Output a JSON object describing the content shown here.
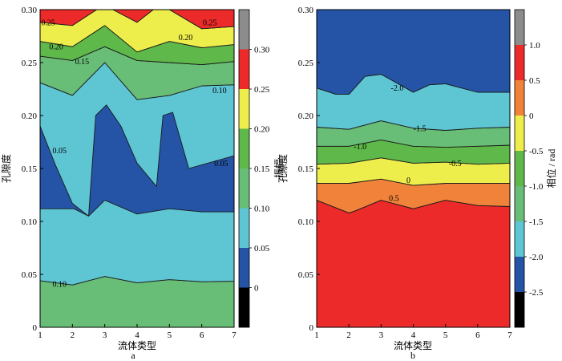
{
  "palette": {
    "black": "#000000",
    "blue": "#2554a6",
    "cyan": "#5ec5d3",
    "green_light": "#68bd77",
    "green": "#5fb84a",
    "yellow": "#eded4c",
    "orange": "#f0823a",
    "red": "#ec2a2a",
    "gray": "#8c8c8c"
  },
  "chart_data": [
    {
      "type": "contour",
      "panel": "a",
      "xlabel": "流体类型",
      "ylabel": "孔隙度",
      "colorbar_label": "振幅",
      "xlim": [
        1,
        7
      ],
      "ylim": [
        0,
        0.3
      ],
      "xticks": [
        "1",
        "2",
        "3",
        "4",
        "5",
        "6",
        "7"
      ],
      "yticks": [
        "0",
        "0.05",
        "0.10",
        "0.15",
        "0.20",
        "0.25",
        "0.30"
      ],
      "colorbar": {
        "range": [
          -0.05,
          0.35
        ],
        "ticks": [
          "0",
          "0.05",
          "0.10",
          "0.15",
          "0.20",
          "0.25",
          "0.30"
        ],
        "bands": [
          {
            "from": -0.05,
            "to": 0.0,
            "color": "#000000"
          },
          {
            "from": 0.0,
            "to": 0.05,
            "color": "#2554a6"
          },
          {
            "from": 0.05,
            "to": 0.1,
            "color": "#5ec5d3"
          },
          {
            "from": 0.1,
            "to": 0.15,
            "color": "#68bd77"
          },
          {
            "from": 0.15,
            "to": 0.2,
            "color": "#5fb84a"
          },
          {
            "from": 0.2,
            "to": 0.25,
            "color": "#eded4c"
          },
          {
            "from": 0.25,
            "to": 0.3,
            "color": "#ec2a2a"
          },
          {
            "from": 0.3,
            "to": 0.35,
            "color": "#8c8c8c"
          }
        ]
      },
      "regions": [
        {
          "level": "0.10-0.15",
          "color": "#68bd77",
          "polygon": [
            [
              1,
              0
            ],
            [
              7,
              0
            ],
            [
              7,
              0.0435
            ],
            [
              6,
              0.043
            ],
            [
              5,
              0.045
            ],
            [
              4,
              0.042
            ],
            [
              3,
              0.048
            ],
            [
              2,
              0.04
            ],
            [
              1,
              0.044
            ]
          ]
        },
        {
          "level": "0.05-0.10",
          "color": "#5ec5d3",
          "polygon": [
            [
              1,
              0.044
            ],
            [
              2,
              0.04
            ],
            [
              3,
              0.048
            ],
            [
              4,
              0.042
            ],
            [
              5,
              0.045
            ],
            [
              6,
              0.043
            ],
            [
              7,
              0.0435
            ],
            [
              7,
              0.229
            ],
            [
              6,
              0.228
            ],
            [
              5,
              0.219
            ],
            [
              4,
              0.215
            ],
            [
              3,
              0.25
            ],
            [
              2,
              0.219
            ],
            [
              1,
              0.231
            ]
          ]
        },
        {
          "level": "0.00-0.05",
          "color": "#2554a6",
          "polygon": [
            [
              1,
              0.112
            ],
            [
              1,
              0.19
            ],
            [
              1.45,
              0.155
            ],
            [
              2,
              0.117
            ],
            [
              2.5,
              0.105
            ],
            [
              2.05,
              0.112
            ]
          ]
        },
        {
          "level": "0.00-0.05",
          "color": "#2554a6",
          "polygon": [
            [
              2.72,
              0.2
            ],
            [
              3.05,
              0.21
            ],
            [
              3.5,
              0.19
            ],
            [
              4,
              0.155
            ],
            [
              4.6,
              0.133
            ],
            [
              4.8,
              0.2
            ],
            [
              5.1,
              0.203
            ],
            [
              5.6,
              0.15
            ],
            [
              7,
              0.162
            ],
            [
              7,
              0.109
            ],
            [
              6,
              0.109
            ],
            [
              5,
              0.112
            ],
            [
              4,
              0.107
            ],
            [
              3,
              0.12
            ],
            [
              2.5,
              0.105
            ]
          ]
        },
        {
          "level": "0.10-0.15",
          "color": "#68bd77",
          "polygon": [
            [
              1,
              0.231
            ],
            [
              2,
              0.219
            ],
            [
              3,
              0.25
            ],
            [
              4,
              0.215
            ],
            [
              5,
              0.219
            ],
            [
              6,
              0.228
            ],
            [
              7,
              0.229
            ],
            [
              7,
              0.251
            ],
            [
              6,
              0.248
            ],
            [
              5,
              0.25
            ],
            [
              4,
              0.252
            ],
            [
              3,
              0.265
            ],
            [
              2,
              0.252
            ],
            [
              1,
              0.256
            ]
          ]
        },
        {
          "level": "0.15-0.20",
          "color": "#5fb84a",
          "polygon": [
            [
              1,
              0.256
            ],
            [
              2,
              0.252
            ],
            [
              3,
              0.265
            ],
            [
              4,
              0.252
            ],
            [
              5,
              0.25
            ],
            [
              6,
              0.248
            ],
            [
              7,
              0.251
            ],
            [
              7,
              0.267
            ],
            [
              6,
              0.264
            ],
            [
              5,
              0.27
            ],
            [
              4,
              0.26
            ],
            [
              3,
              0.285
            ],
            [
              2,
              0.265
            ],
            [
              1,
              0.27
            ]
          ]
        },
        {
          "level": "0.20-0.25",
          "color": "#eded4c",
          "polygon": [
            [
              1,
              0.27
            ],
            [
              2,
              0.265
            ],
            [
              3,
              0.285
            ],
            [
              4,
              0.26
            ],
            [
              5,
              0.27
            ],
            [
              6,
              0.264
            ],
            [
              7,
              0.267
            ],
            [
              7,
              0.284
            ],
            [
              6,
              0.282
            ],
            [
              5,
              0.3
            ],
            [
              4.5,
              0.3
            ],
            [
              4,
              0.288
            ],
            [
              3.25,
              0.3
            ],
            [
              2.75,
              0.3
            ],
            [
              2,
              0.285
            ],
            [
              1,
              0.288
            ]
          ]
        },
        {
          "level": "0.25-0.30",
          "color": "#ec2a2a",
          "polygon": [
            [
              1,
              0.288
            ],
            [
              2,
              0.285
            ],
            [
              2.75,
              0.3
            ],
            [
              1,
              0.3
            ]
          ]
        },
        {
          "level": "0.25-0.30",
          "color": "#ec2a2a",
          "polygon": [
            [
              3.25,
              0.3
            ],
            [
              4,
              0.288
            ],
            [
              4.5,
              0.3
            ]
          ]
        },
        {
          "level": "0.25-0.30",
          "color": "#ec2a2a",
          "polygon": [
            [
              5,
              0.3
            ],
            [
              6,
              0.282
            ],
            [
              7,
              0.284
            ],
            [
              7,
              0.3
            ]
          ]
        }
      ],
      "contour_labels": [
        {
          "text": "0.25",
          "x": 1.25,
          "y": 0.288
        },
        {
          "text": "0.25",
          "x": 6.25,
          "y": 0.288
        },
        {
          "text": "0.20",
          "x": 1.5,
          "y": 0.265
        },
        {
          "text": "0.20",
          "x": 5.5,
          "y": 0.274
        },
        {
          "text": "0.15",
          "x": 2.3,
          "y": 0.251
        },
        {
          "text": "0.10",
          "x": 6.55,
          "y": 0.224
        },
        {
          "text": "0.05",
          "x": 1.6,
          "y": 0.167
        },
        {
          "text": "0.05",
          "x": 6.6,
          "y": 0.155
        },
        {
          "text": "0.10",
          "x": 1.6,
          "y": 0.041
        }
      ]
    },
    {
      "type": "contour",
      "panel": "b",
      "xlabel": "流体类型",
      "ylabel": "孔隙度",
      "colorbar_label": "相位 / rad",
      "xlim": [
        1,
        7
      ],
      "ylim": [
        0,
        0.3
      ],
      "xticks": [
        "1",
        "2",
        "3",
        "4",
        "5",
        "6",
        "7"
      ],
      "yticks": [
        "0",
        "0.05",
        "0.10",
        "0.15",
        "0.20",
        "0.25",
        "0.30"
      ],
      "colorbar": {
        "range": [
          -3.0,
          1.5
        ],
        "ticks": [
          "-2.5",
          "-2.0",
          "-1.5",
          "-1.0",
          "-0.5",
          "0",
          "0.5",
          "1.0"
        ],
        "bands": [
          {
            "from": -3.0,
            "to": -2.5,
            "color": "#000000"
          },
          {
            "from": -2.5,
            "to": -2.0,
            "color": "#2554a6"
          },
          {
            "from": -2.0,
            "to": -1.5,
            "color": "#5ec5d3"
          },
          {
            "from": -1.5,
            "to": -1.0,
            "color": "#68bd77"
          },
          {
            "from": -1.0,
            "to": -0.5,
            "color": "#5fb84a"
          },
          {
            "from": -0.5,
            "to": 0.0,
            "color": "#eded4c"
          },
          {
            "from": 0.0,
            "to": 0.5,
            "color": "#f0823a"
          },
          {
            "from": 0.5,
            "to": 1.0,
            "color": "#ec2a2a"
          },
          {
            "from": 1.0,
            "to": 1.5,
            "color": "#8c8c8c"
          }
        ]
      },
      "regions": [
        {
          "level": "0.5-1.0",
          "color": "#ec2a2a",
          "polygon": [
            [
              1,
              0
            ],
            [
              7,
              0
            ],
            [
              7,
              0.114
            ],
            [
              6,
              0.115
            ],
            [
              5,
              0.12
            ],
            [
              4,
              0.112
            ],
            [
              3,
              0.12
            ],
            [
              2.2,
              0.11
            ],
            [
              2,
              0.108
            ],
            [
              1,
              0.12
            ]
          ]
        },
        {
          "level": "0-0.5",
          "color": "#f0823a",
          "polygon": [
            [
              1,
              0.12
            ],
            [
              2,
              0.108
            ],
            [
              2.2,
              0.11
            ],
            [
              3,
              0.12
            ],
            [
              4,
              0.112
            ],
            [
              5,
              0.12
            ],
            [
              6,
              0.115
            ],
            [
              7,
              0.114
            ],
            [
              7,
              0.136
            ],
            [
              6,
              0.136
            ],
            [
              5,
              0.136
            ],
            [
              4,
              0.134
            ],
            [
              3,
              0.14
            ],
            [
              2,
              0.136
            ],
            [
              1,
              0.136
            ]
          ]
        },
        {
          "level": "-0.5-0",
          "color": "#eded4c",
          "polygon": [
            [
              1,
              0.136
            ],
            [
              2,
              0.136
            ],
            [
              3,
              0.14
            ],
            [
              4,
              0.134
            ],
            [
              5,
              0.136
            ],
            [
              6,
              0.136
            ],
            [
              7,
              0.136
            ],
            [
              7,
              0.155
            ],
            [
              6,
              0.154
            ],
            [
              5,
              0.156
            ],
            [
              4,
              0.155
            ],
            [
              3,
              0.16
            ],
            [
              2,
              0.155
            ],
            [
              1,
              0.154
            ]
          ]
        },
        {
          "level": "-1.0--0.5",
          "color": "#5fb84a",
          "polygon": [
            [
              1,
              0.154
            ],
            [
              2,
              0.155
            ],
            [
              3,
              0.16
            ],
            [
              4,
              0.155
            ],
            [
              5,
              0.156
            ],
            [
              6,
              0.154
            ],
            [
              7,
              0.155
            ],
            [
              7,
              0.172
            ],
            [
              6,
              0.171
            ],
            [
              5,
              0.17
            ],
            [
              4,
              0.171
            ],
            [
              3,
              0.177
            ],
            [
              2,
              0.171
            ],
            [
              1,
              0.171
            ]
          ]
        },
        {
          "level": "-1.5--1.0",
          "color": "#68bd77",
          "polygon": [
            [
              1,
              0.171
            ],
            [
              2,
              0.171
            ],
            [
              3,
              0.177
            ],
            [
              4,
              0.171
            ],
            [
              5,
              0.17
            ],
            [
              6,
              0.171
            ],
            [
              7,
              0.172
            ],
            [
              7,
              0.189
            ],
            [
              6,
              0.188
            ],
            [
              5,
              0.186
            ],
            [
              4,
              0.188
            ],
            [
              3,
              0.195
            ],
            [
              2,
              0.187
            ],
            [
              1,
              0.189
            ]
          ]
        },
        {
          "level": "-2.0--1.5",
          "color": "#5ec5d3",
          "polygon": [
            [
              1,
              0.189
            ],
            [
              2,
              0.187
            ],
            [
              3,
              0.195
            ],
            [
              4,
              0.188
            ],
            [
              5,
              0.186
            ],
            [
              6,
              0.188
            ],
            [
              7,
              0.189
            ],
            [
              7,
              0.222
            ],
            [
              6,
              0.222
            ],
            [
              5,
              0.23
            ],
            [
              4.5,
              0.229
            ],
            [
              4,
              0.222
            ],
            [
              3,
              0.239
            ],
            [
              2.5,
              0.237
            ],
            [
              2,
              0.22
            ],
            [
              1.6,
              0.22
            ],
            [
              1,
              0.226
            ]
          ]
        },
        {
          "level": "-2.5--2.0",
          "color": "#2554a6",
          "polygon": [
            [
              1,
              0.226
            ],
            [
              1.6,
              0.22
            ],
            [
              2,
              0.22
            ],
            [
              2.5,
              0.237
            ],
            [
              3,
              0.239
            ],
            [
              4,
              0.222
            ],
            [
              4.5,
              0.229
            ],
            [
              5,
              0.23
            ],
            [
              6,
              0.222
            ],
            [
              7,
              0.222
            ],
            [
              7,
              0.3
            ],
            [
              1,
              0.3
            ]
          ]
        }
      ],
      "contour_labels": [
        {
          "text": "-2.0",
          "x": 3.5,
          "y": 0.226
        },
        {
          "text": "-1.5",
          "x": 4.2,
          "y": 0.188
        },
        {
          "text": "-1.0",
          "x": 2.35,
          "y": 0.171
        },
        {
          "text": "-0.5",
          "x": 5.3,
          "y": 0.155
        },
        {
          "text": "0",
          "x": 3.85,
          "y": 0.139
        },
        {
          "text": "0.5",
          "x": 3.4,
          "y": 0.122
        }
      ]
    }
  ]
}
